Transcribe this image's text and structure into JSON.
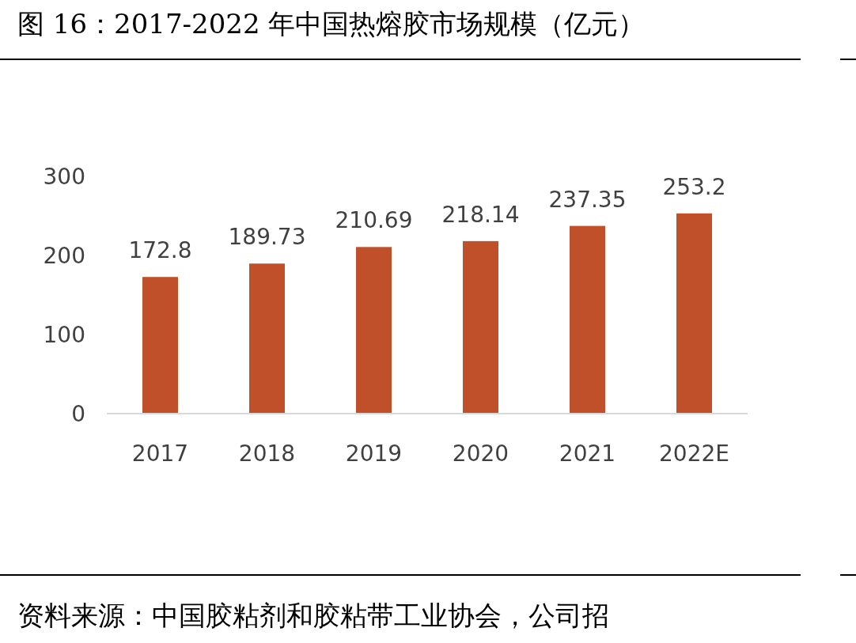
{
  "chart_data": {
    "type": "bar",
    "title": "图 16：2017-2022 年中国热熔胶市场规模（亿元）",
    "categories": [
      "2017",
      "2018",
      "2019",
      "2020",
      "2021",
      "2022E"
    ],
    "values": [
      172.8,
      189.73,
      210.69,
      218.14,
      237.35,
      253.2
    ],
    "color": "#c0502a",
    "ylim": [
      0,
      300
    ],
    "yticks": [
      0,
      100,
      200,
      300
    ],
    "data_labels": true,
    "grid": false,
    "annotations": [
      "资料来源：中国胶粘剂和胶粘带工业协会，公司招"
    ]
  }
}
